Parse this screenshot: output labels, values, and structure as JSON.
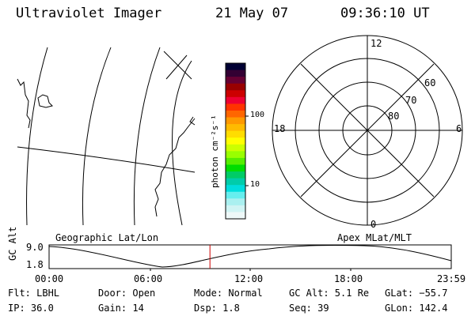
{
  "header": {
    "title": "Ultraviolet Imager",
    "date": "21 May 07",
    "time": "09:36:10 UT"
  },
  "geo_panel": {
    "label": "Geographic Lat/Lon"
  },
  "polar_panel": {
    "label": "Apex MLat/MLT",
    "mlt_labels": {
      "top": "12",
      "right": "6",
      "bottom": "0",
      "left": "18"
    },
    "lat_labels": [
      "80",
      "70",
      "60"
    ]
  },
  "colorbar": {
    "unit_label": "photon cm⁻²s⁻¹",
    "ticks": [
      "100",
      "10"
    ],
    "colors": [
      "#000033",
      "#330033",
      "#660033",
      "#990000",
      "#cc0000",
      "#ee0033",
      "#ff3300",
      "#ff6600",
      "#ff9900",
      "#ffbb00",
      "#ffdd00",
      "#ffff00",
      "#ccff00",
      "#99ff00",
      "#55ee00",
      "#00dd00",
      "#00cc66",
      "#00ccaa",
      "#00dddd",
      "#66eeee",
      "#aaf0f0",
      "#d0f4f4",
      "#eef8f8"
    ]
  },
  "timeline": {
    "y_axis_label": "GC Alt",
    "y_ticks": [
      "9.0",
      "1.8"
    ],
    "x_ticks": [
      "00:00",
      "06:00",
      "12:00",
      "18:00",
      "23:59"
    ],
    "current_time_fraction": 0.4
  },
  "info": {
    "flt": "Flt: LBHL",
    "ip": "IP: 36.0",
    "door": "Door: Open",
    "gain": "Gain: 14",
    "mode": "Mode: Normal",
    "dsp": "Dsp:    1.8",
    "gc_alt": "GC Alt: 5.1 Re",
    "seq": "Seq: 39",
    "glat": "GLat: −55.7",
    "glon": "GLon: 142.4"
  },
  "colors": {
    "marker": "#cc0000",
    "ink": "#000000"
  }
}
